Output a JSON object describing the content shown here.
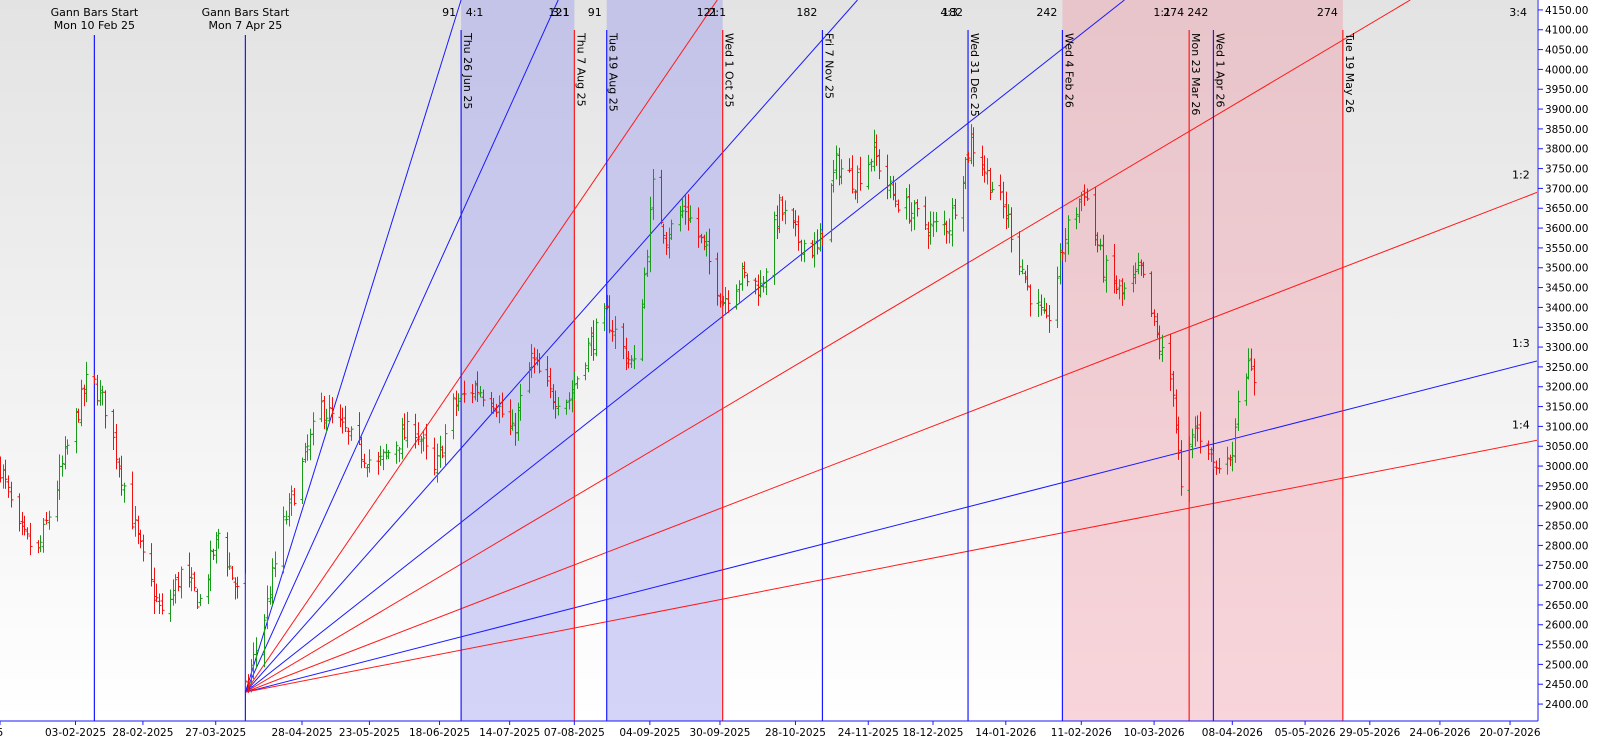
{
  "colors": {
    "background_top": "#e3e3e3",
    "background_bottom": "#ffffff",
    "blue": "#1a1aff",
    "red": "#ff1a1a",
    "up_bar": "#1a9a1a",
    "down_bar": "#ee1111",
    "shade_blue": "#9999ee",
    "shade_red": "#ee9aa6",
    "axis": "#1a1aff"
  },
  "chart_data": {
    "type": "ohlc",
    "ylim": [
      2380,
      4175
    ],
    "y_ticks": [
      "2400.00",
      "2450.00",
      "2500.00",
      "2550.00",
      "2600.00",
      "2650.00",
      "2700.00",
      "2750.00",
      "2800.00",
      "2850.00",
      "2900.00",
      "2950.00",
      "3000.00",
      "3050.00",
      "3100.00",
      "3150.00",
      "3200.00",
      "3250.00",
      "3300.00",
      "3350.00",
      "3400.00",
      "3450.00",
      "3500.00",
      "3550.00",
      "3600.00",
      "3650.00",
      "3700.00",
      "3750.00",
      "3800.00",
      "3850.00",
      "3900.00",
      "3950.00",
      "4000.00",
      "4050.00",
      "4100.00",
      "4150.00"
    ],
    "x_range": [
      "2025-01-06",
      "2026-07-30"
    ],
    "x_ticks": [
      {
        "date": "2025-01-06",
        "label": "5"
      },
      {
        "date": "2025-02-03",
        "label": "03-02-2025"
      },
      {
        "date": "2025-02-28",
        "label": "28-02-2025"
      },
      {
        "date": "2025-03-27",
        "label": "27-03-2025"
      },
      {
        "date": "2025-04-28",
        "label": "28-04-2025"
      },
      {
        "date": "2025-05-23",
        "label": "23-05-2025"
      },
      {
        "date": "2025-06-18",
        "label": "18-06-2025"
      },
      {
        "date": "2025-07-14",
        "label": "14-07-2025"
      },
      {
        "date": "2025-08-07",
        "label": "07-08-2025"
      },
      {
        "date": "2025-09-04",
        "label": "04-09-2025"
      },
      {
        "date": "2025-09-30",
        "label": "30-09-2025"
      },
      {
        "date": "2025-10-28",
        "label": "28-10-2025"
      },
      {
        "date": "2025-11-24",
        "label": "24-11-2025"
      },
      {
        "date": "2025-12-18",
        "label": "18-12-2025"
      },
      {
        "date": "2026-01-14",
        "label": "14-01-2026"
      },
      {
        "date": "2026-02-11",
        "label": "11-02-2026"
      },
      {
        "date": "2026-03-10",
        "label": "10-03-2026"
      },
      {
        "date": "2026-04-08",
        "label": "08-04-2026"
      },
      {
        "date": "2026-05-05",
        "label": "05-05-2026"
      },
      {
        "date": "2026-05-29",
        "label": "29-05-2026"
      },
      {
        "date": "2026-06-24",
        "label": "24-06-2026"
      },
      {
        "date": "2026-07-20",
        "label": "20-07-2026"
      }
    ],
    "start_markers": [
      {
        "date": "2025-02-10",
        "line1": "Gann Bars Start",
        "line2": "Mon 10 Feb 25"
      },
      {
        "date": "2025-04-07",
        "line1": "Gann Bars Start",
        "line2": "Mon 7 Apr 25"
      }
    ],
    "vertical_markers": [
      {
        "date": "2025-06-26",
        "label": "Thu 26 Jun 25",
        "color": "blue",
        "count": "91"
      },
      {
        "date": "2025-08-07",
        "label": "Thu 7 Aug 25",
        "color": "red",
        "count": "121"
      },
      {
        "date": "2025-08-19",
        "label": "Tue 19 Aug 25",
        "color": "blue",
        "count": "91"
      },
      {
        "date": "2025-10-01",
        "label": "Wed 1 Oct 25",
        "color": "red",
        "count": "121"
      },
      {
        "date": "2025-11-07",
        "label": "Fri 7 Nov 25",
        "color": "blue",
        "count": "182"
      },
      {
        "date": "2025-12-31",
        "label": "Wed 31 Dec 25",
        "color": "blue",
        "count": "182"
      },
      {
        "date": "2026-02-04",
        "label": "Wed 4 Feb 26",
        "color": "blue",
        "count": "242"
      },
      {
        "date": "2026-03-23",
        "label": "Mon 23 Mar 26",
        "color": "red",
        "count": "274"
      },
      {
        "date": "2026-04-01",
        "label": "Wed 1 Apr 26",
        "color": "blue",
        "count": "242"
      },
      {
        "date": "2026-05-19",
        "label": "Tue 19 May 26",
        "color": "red",
        "count": "274"
      }
    ],
    "shaded_regions": [
      {
        "from": "2025-06-26",
        "to": "2025-08-07",
        "color": "blue"
      },
      {
        "from": "2025-08-19",
        "to": "2025-10-01",
        "color": "blue"
      },
      {
        "from": "2026-02-04",
        "to": "2026-05-19",
        "color": "red"
      }
    ],
    "gann_fan": {
      "origin": {
        "date": "2025-04-07",
        "price": 2430
      },
      "lines": [
        {
          "color": "blue",
          "to": {
            "date": "2025-06-26",
            "price": 4175
          },
          "label": ""
        },
        {
          "color": "blue",
          "to": {
            "date": "2025-08-01",
            "price": 4175
          },
          "label": "4:1"
        },
        {
          "color": "red",
          "to": {
            "date": "2025-09-29",
            "price": 4175
          },
          "label": "3:1"
        },
        {
          "color": "blue",
          "to": {
            "date": "2025-11-20",
            "price": 4175
          },
          "label": "2:1"
        },
        {
          "color": "blue",
          "to": {
            "date": "2026-02-27",
            "price": 4175
          },
          "label": "4:3"
        },
        {
          "color": "red",
          "to": {
            "date": "2026-06-13",
            "price": 4175
          },
          "label": "1:1"
        },
        {
          "color": "red",
          "to": {
            "date": "2026-07-30",
            "price": 3690
          },
          "label": "1:2"
        },
        {
          "color": "blue",
          "to": {
            "date": "2026-07-30",
            "price": 3265
          },
          "label": "1:3"
        },
        {
          "color": "red",
          "to": {
            "date": "2026-07-30",
            "price": 3065
          },
          "label": "1:4"
        }
      ],
      "top_labels": [
        {
          "text": "4:1",
          "date": "2025-07-01"
        },
        {
          "text": "3:1",
          "date": "2025-08-02"
        },
        {
          "text": "2:1",
          "date": "2025-09-29"
        },
        {
          "text": "4:3",
          "date": "2025-12-24"
        },
        {
          "text": "1:1",
          "date": "2026-03-13"
        },
        {
          "text": "3:4",
          "date": "2026-07-23"
        }
      ],
      "right_labels": [
        {
          "text": "1:2",
          "price": 3715
        },
        {
          "text": "1:3",
          "price": 3290
        },
        {
          "text": "1:4",
          "price": 3085
        }
      ]
    },
    "anchors": [
      [
        "2025-01-06",
        3000
      ],
      [
        "2025-01-13",
        2830
      ],
      [
        "2025-01-20",
        2780
      ],
      [
        "2025-01-27",
        2950
      ],
      [
        "2025-02-03",
        3120
      ],
      [
        "2025-02-08",
        3230
      ],
      [
        "2025-02-14",
        3150
      ],
      [
        "2025-02-21",
        2950
      ],
      [
        "2025-02-28",
        2760
      ],
      [
        "2025-03-07",
        2620
      ],
      [
        "2025-03-14",
        2730
      ],
      [
        "2025-03-21",
        2660
      ],
      [
        "2025-03-28",
        2830
      ],
      [
        "2025-04-04",
        2680
      ],
      [
        "2025-04-07",
        2430
      ],
      [
        "2025-04-14",
        2620
      ],
      [
        "2025-04-21",
        2850
      ],
      [
        "2025-04-28",
        3000
      ],
      [
        "2025-05-05",
        3150
      ],
      [
        "2025-05-12",
        3100
      ],
      [
        "2025-05-19",
        3040
      ],
      [
        "2025-05-26",
        3000
      ],
      [
        "2025-06-02",
        3060
      ],
      [
        "2025-06-09",
        3100
      ],
      [
        "2025-06-16",
        2980
      ],
      [
        "2025-06-23",
        3150
      ],
      [
        "2025-07-01",
        3200
      ],
      [
        "2025-07-08",
        3170
      ],
      [
        "2025-07-15",
        3080
      ],
      [
        "2025-07-22",
        3270
      ],
      [
        "2025-07-29",
        3180
      ],
      [
        "2025-08-05",
        3170
      ],
      [
        "2025-08-12",
        3300
      ],
      [
        "2025-08-19",
        3380
      ],
      [
        "2025-08-26",
        3280
      ],
      [
        "2025-08-29",
        3250
      ],
      [
        "2025-09-02",
        3480
      ],
      [
        "2025-09-05",
        3700
      ],
      [
        "2025-09-10",
        3580
      ],
      [
        "2025-09-17",
        3650
      ],
      [
        "2025-09-24",
        3550
      ],
      [
        "2025-10-01",
        3420
      ],
      [
        "2025-10-08",
        3480
      ],
      [
        "2025-10-15",
        3450
      ],
      [
        "2025-10-22",
        3650
      ],
      [
        "2025-10-29",
        3570
      ],
      [
        "2025-11-05",
        3540
      ],
      [
        "2025-11-12",
        3760
      ],
      [
        "2025-11-19",
        3720
      ],
      [
        "2025-11-26",
        3790
      ],
      [
        "2025-12-03",
        3680
      ],
      [
        "2025-12-10",
        3640
      ],
      [
        "2025-12-17",
        3600
      ],
      [
        "2025-12-24",
        3610
      ],
      [
        "2026-01-01",
        3820
      ],
      [
        "2026-01-08",
        3720
      ],
      [
        "2026-01-15",
        3620
      ],
      [
        "2026-01-22",
        3450
      ],
      [
        "2026-01-29",
        3350
      ],
      [
        "2026-02-05",
        3580
      ],
      [
        "2026-02-12",
        3700
      ],
      [
        "2026-02-19",
        3500
      ],
      [
        "2026-02-26",
        3430
      ],
      [
        "2026-03-05",
        3490
      ],
      [
        "2026-03-12",
        3300
      ],
      [
        "2026-03-17",
        3200
      ],
      [
        "2026-03-20",
        2930
      ],
      [
        "2026-03-25",
        3100
      ],
      [
        "2026-03-30",
        3050
      ],
      [
        "2026-04-02",
        2990
      ],
      [
        "2026-04-06",
        3050
      ],
      [
        "2026-04-07",
        2990
      ],
      [
        "2026-04-10",
        3180
      ],
      [
        "2026-04-13",
        3250
      ],
      [
        "2026-04-16",
        3220
      ]
    ]
  }
}
